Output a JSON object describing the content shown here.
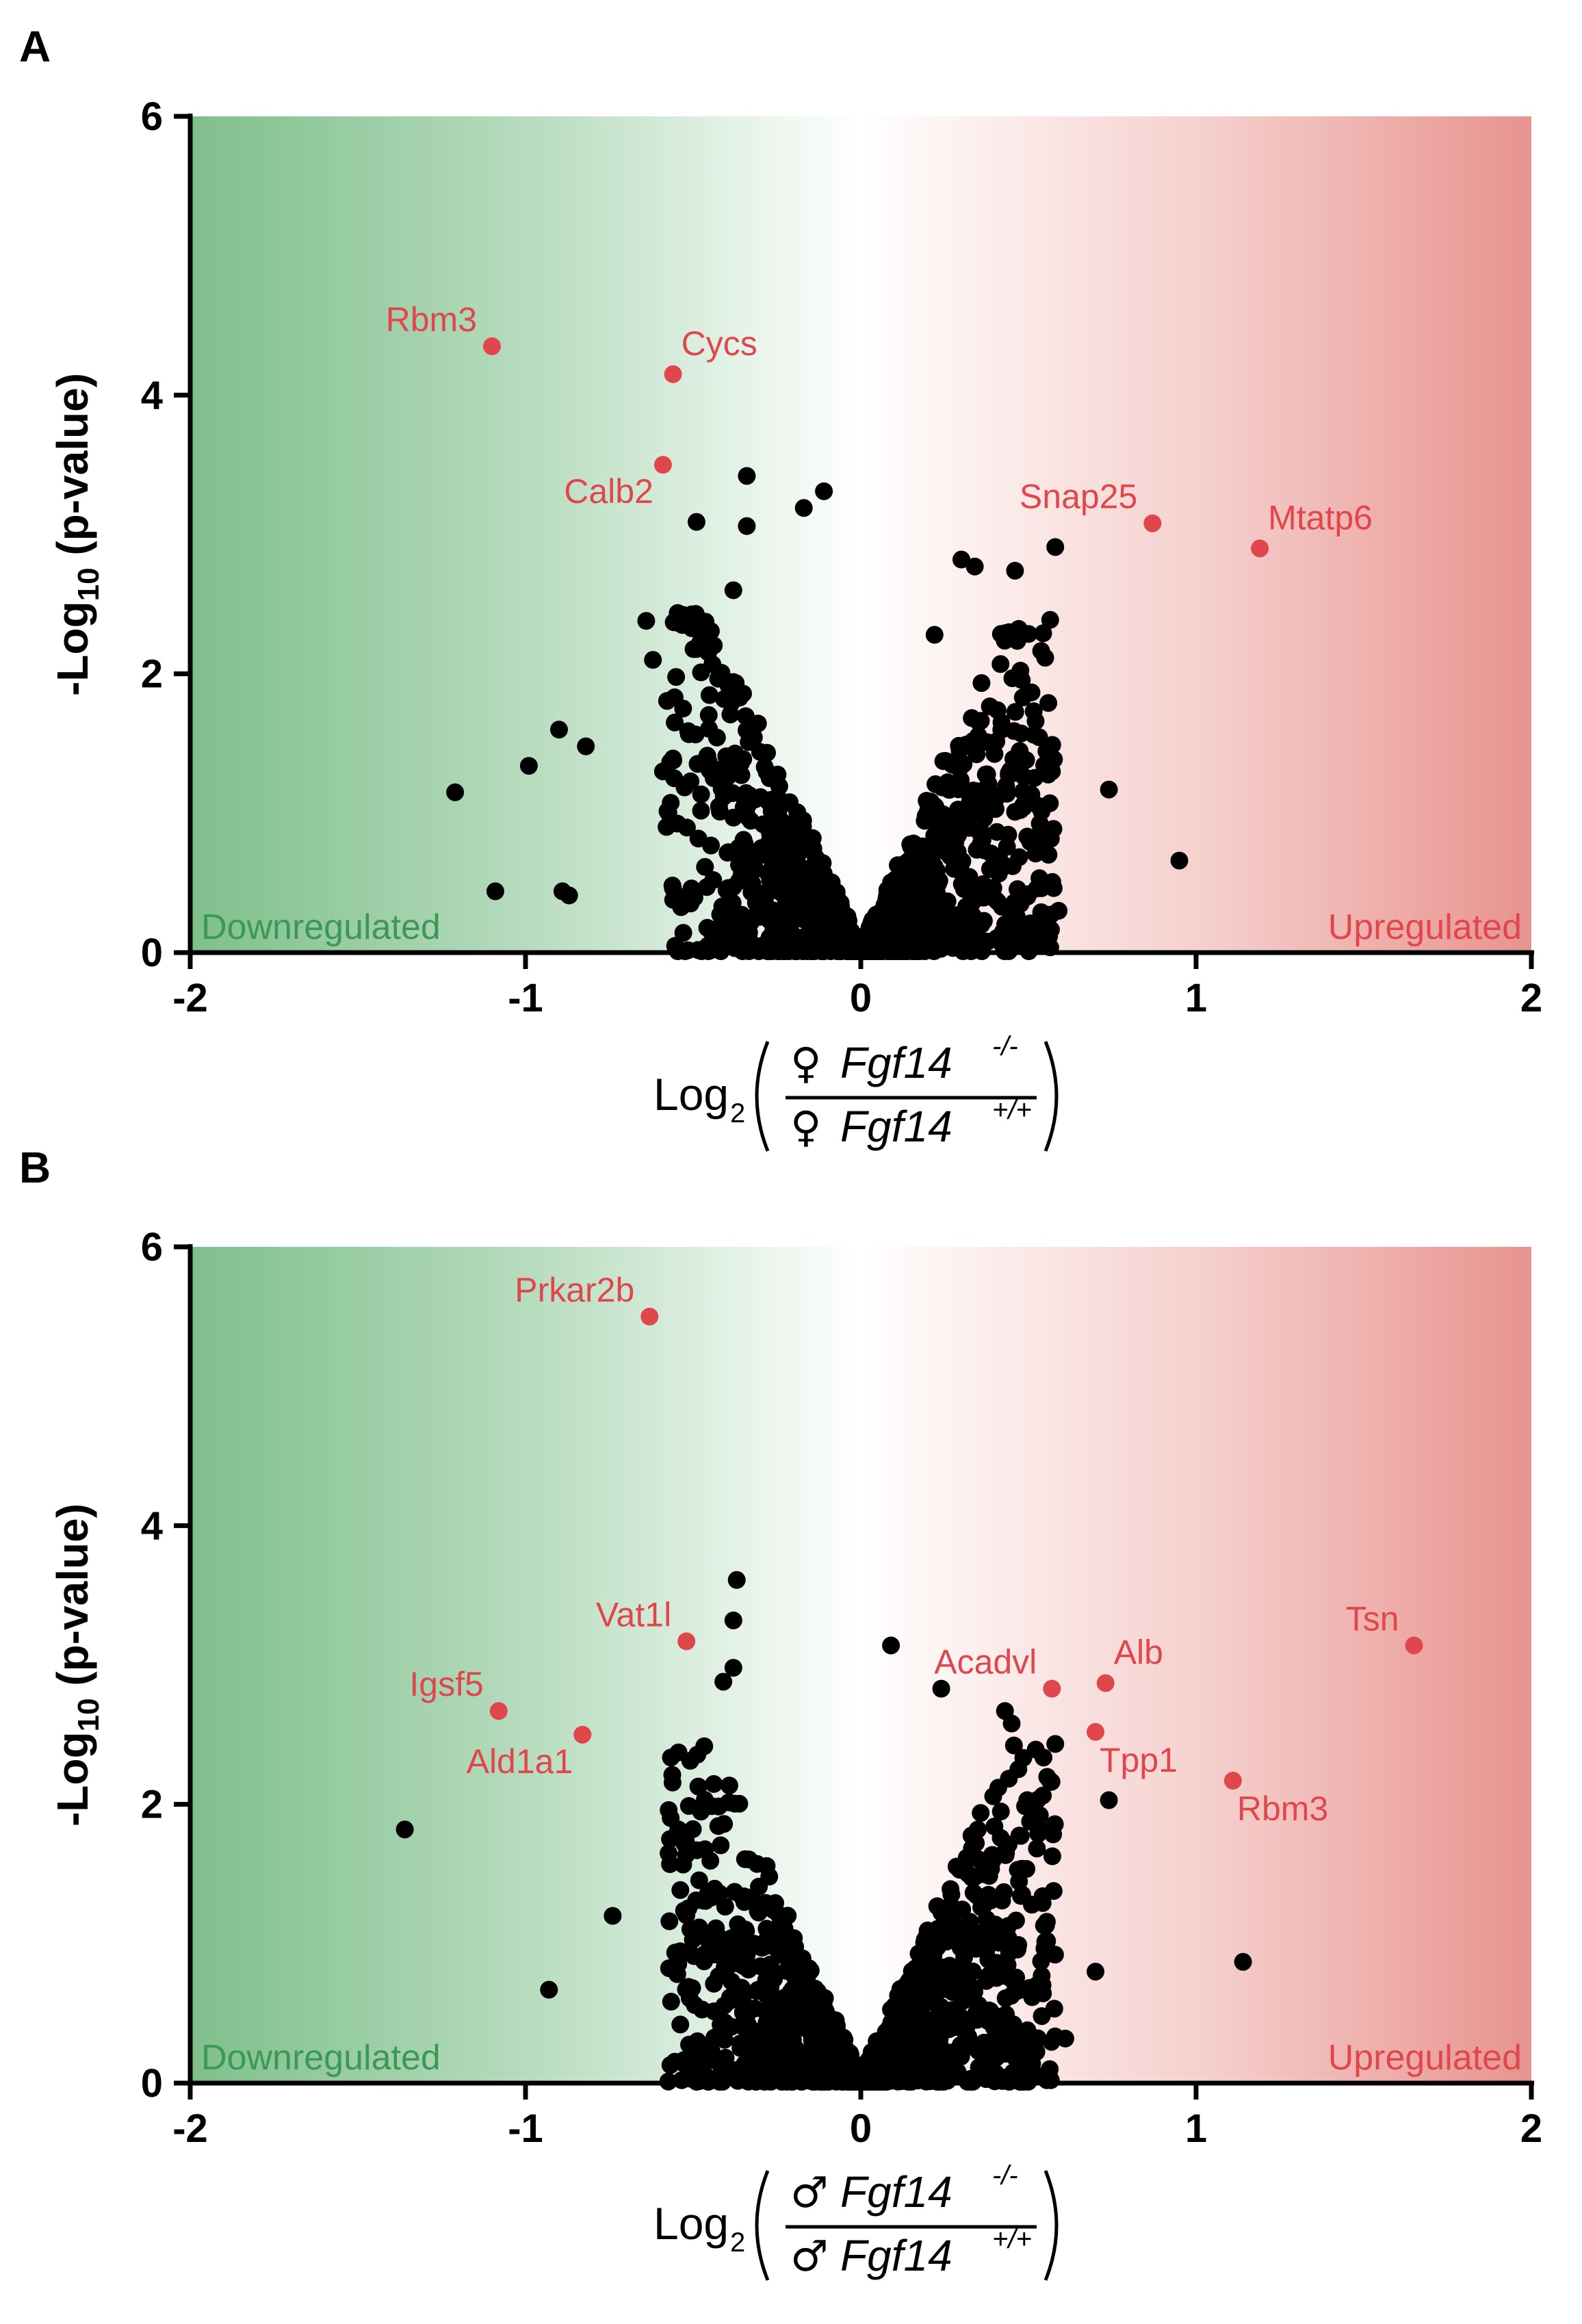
{
  "figure": {
    "panels": [
      {
        "panel_label": "A",
        "sex_symbol": "♀",
        "x_label_prefix": "Log",
        "x_label_base": "2",
        "numerator_gene": "Fgf14",
        "numerator_genotype": "-/-",
        "denominator_gene": "Fgf14",
        "denominator_genotype": "+/+",
        "y_label_prefix": "-Log",
        "y_label_sub": "10",
        "y_label_suffix": " (p-value)",
        "downregulated_label": "Downregulated",
        "upregulated_label": "Upregulated"
      },
      {
        "panel_label": "B",
        "sex_symbol": "♂",
        "x_label_prefix": "Log",
        "x_label_base": "2",
        "numerator_gene": "Fgf14",
        "numerator_genotype": "-/-",
        "denominator_gene": "Fgf14",
        "denominator_genotype": "+/+",
        "y_label_prefix": "-Log",
        "y_label_sub": "10",
        "y_label_suffix": " (p-value)",
        "downregulated_label": "Downregulated",
        "upregulated_label": "Upregulated"
      }
    ],
    "colors": {
      "down_green": "#7fbf8c",
      "up_red": "#e8938f",
      "highlight": "#e0474c",
      "point": "#000000"
    }
  },
  "chart_data": [
    {
      "type": "scatter",
      "title": "A",
      "xlabel": "Log2(♀ Fgf14-/- / ♀ Fgf14+/+)",
      "ylabel": "-Log10 (p-value)",
      "xlim": [
        -2,
        2
      ],
      "ylim": [
        0,
        6
      ],
      "x_ticks": [
        -2,
        -1,
        0,
        1,
        2
      ],
      "x_tick_labels": [
        "-2",
        "-1",
        "0",
        "1",
        "2"
      ],
      "y_ticks": [
        0,
        2,
        4,
        6
      ],
      "y_tick_labels": [
        "0",
        "2",
        "4",
        "6"
      ],
      "highlighted": [
        {
          "name": "Rbm3",
          "x": -1.1,
          "y": 4.35,
          "label_pos": "upper-left"
        },
        {
          "name": "Cycs",
          "x": -0.56,
          "y": 4.15,
          "label_pos": "upper-right"
        },
        {
          "name": "Calb2",
          "x": -0.59,
          "y": 3.5,
          "label_pos": "lower-left"
        },
        {
          "name": "Snap25",
          "x": 0.87,
          "y": 3.08,
          "label_pos": "upper-left"
        },
        {
          "name": "Mtatp6",
          "x": 1.19,
          "y": 2.9,
          "label_pos": "upper-right"
        }
      ],
      "outliers": [
        [
          -1.21,
          1.15
        ],
        [
          -1.09,
          0.44
        ],
        [
          -0.99,
          1.34
        ],
        [
          -0.9,
          1.6
        ],
        [
          -0.89,
          0.44
        ],
        [
          -0.87,
          0.41
        ],
        [
          -0.82,
          1.48
        ],
        [
          -0.49,
          3.09
        ],
        [
          -0.34,
          3.42
        ],
        [
          -0.34,
          3.06
        ],
        [
          -0.17,
          3.19
        ],
        [
          -0.11,
          3.31
        ],
        [
          0.3,
          2.82
        ],
        [
          0.34,
          2.77
        ],
        [
          0.46,
          2.74
        ],
        [
          0.58,
          2.91
        ],
        [
          0.74,
          1.17
        ],
        [
          0.95,
          0.66
        ],
        [
          0.57,
          1.3
        ],
        [
          0.59,
          0.3
        ],
        [
          -0.64,
          2.38
        ],
        [
          -0.62,
          2.1
        ],
        [
          -0.59,
          1.3
        ],
        [
          -0.38,
          2.6
        ],
        [
          0.22,
          2.28
        ]
      ],
      "cloud": {
        "count": 1250,
        "seed": 7,
        "description": "dense V-shaped cloud of non-significant proteins centred on x = 0"
      },
      "region_labels": {
        "left": "Downregulated",
        "right": "Upregulated"
      }
    },
    {
      "type": "scatter",
      "title": "B",
      "xlabel": "Log2(♂ Fgf14-/- / ♂ Fgf14+/+)",
      "ylabel": "-Log10 (p-value)",
      "xlim": [
        -2,
        2
      ],
      "ylim": [
        0,
        6
      ],
      "x_ticks": [
        -2,
        -1,
        0,
        1,
        2
      ],
      "x_tick_labels": [
        "-2",
        "-1",
        "0",
        "1",
        "2"
      ],
      "y_ticks": [
        0,
        2,
        4,
        6
      ],
      "y_tick_labels": [
        "0",
        "2",
        "4",
        "6"
      ],
      "highlighted": [
        {
          "name": "Prkar2b",
          "x": -0.63,
          "y": 5.5,
          "label_pos": "upper-left"
        },
        {
          "name": "Vat1l",
          "x": -0.52,
          "y": 3.17,
          "label_pos": "upper-left"
        },
        {
          "name": "Igsf5",
          "x": -1.08,
          "y": 2.67,
          "label_pos": "upper-left"
        },
        {
          "name": "Ald1a1",
          "x": -0.83,
          "y": 2.5,
          "label_pos": "lower-left"
        },
        {
          "name": "Acadvl",
          "x": 0.57,
          "y": 2.83,
          "label_pos": "upper-left"
        },
        {
          "name": "Alb",
          "x": 0.73,
          "y": 2.87,
          "label_pos": "upper-right"
        },
        {
          "name": "Tpp1",
          "x": 0.7,
          "y": 2.52,
          "label_pos": "lower-right"
        },
        {
          "name": "Rbm3",
          "x": 1.11,
          "y": 2.17,
          "label_pos": "lower-right"
        },
        {
          "name": "Tsn",
          "x": 1.65,
          "y": 3.14,
          "label_pos": "upper-left"
        }
      ],
      "outliers": [
        [
          -1.36,
          1.82
        ],
        [
          -0.93,
          0.67
        ],
        [
          -0.37,
          3.61
        ],
        [
          -0.38,
          3.32
        ],
        [
          -0.41,
          2.88
        ],
        [
          -0.38,
          2.98
        ],
        [
          0.09,
          3.14
        ],
        [
          0.24,
          2.83
        ],
        [
          0.43,
          2.67
        ],
        [
          0.45,
          2.58
        ],
        [
          0.74,
          2.03
        ],
        [
          1.14,
          0.87
        ],
        [
          0.61,
          0.32
        ],
        [
          0.7,
          0.8
        ],
        [
          -0.74,
          1.2
        ]
      ],
      "cloud": {
        "count": 1250,
        "seed": 21,
        "description": "dense V-shaped cloud of non-significant proteins centred on x = 0"
      },
      "region_labels": {
        "left": "Downregulated",
        "right": "Upregulated"
      }
    }
  ]
}
